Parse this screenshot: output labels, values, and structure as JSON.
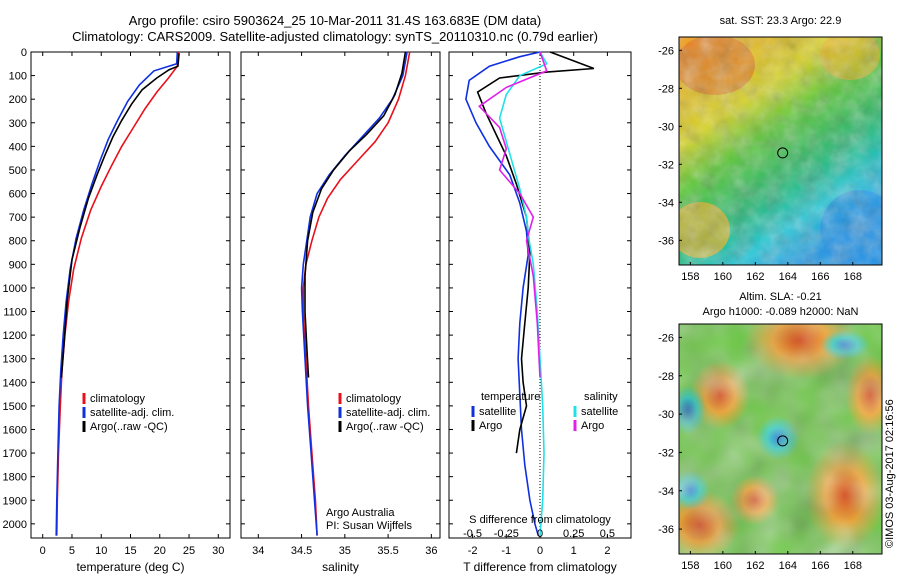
{
  "figure": {
    "title_line1": "Argo profile: csiro 5903624_25 10-Mar-2011 31.4S 163.683E (DM data)",
    "title_line2": "Climatology: CARS2009. Satellite-adjusted climatology: synTS_20110310.nc (0.79d earlier)",
    "credit": "©IMOS 03-Aug-2017 02:16:56",
    "colors": {
      "climatology": "#e8101a",
      "satellite": "#1030e0",
      "argo": "#000000",
      "sal_satellite": "#20e0e8",
      "sal_argo": "#e020e8"
    }
  },
  "chart_data": [
    {
      "type": "line",
      "id": "temperature",
      "xlabel": "temperature (deg C)",
      "ylabel": "",
      "xlim": [
        -2,
        32
      ],
      "ylim": [
        2060,
        0
      ],
      "xticks": [
        0,
        5,
        10,
        15,
        20,
        25,
        30
      ],
      "yticks": [
        0,
        100,
        200,
        300,
        400,
        500,
        600,
        700,
        800,
        900,
        1000,
        1100,
        1200,
        1300,
        1400,
        1500,
        1600,
        1700,
        1800,
        1900,
        2000
      ],
      "legend": [
        "climatology",
        "satellite-adj. clim.",
        "Argo(..raw -QC)"
      ],
      "series": [
        {
          "name": "climatology",
          "color": "#e8101a",
          "x": [
            23.2,
            23.0,
            21.5,
            19.5,
            17.5,
            15.5,
            13.5,
            11.8,
            10.0,
            8.2,
            6.6,
            5.3,
            4.4,
            3.8,
            3.3,
            3.0,
            2.7,
            2.5,
            2.4
          ],
          "y": [
            0,
            60,
            110,
            170,
            240,
            320,
            400,
            480,
            570,
            670,
            790,
            920,
            1060,
            1200,
            1350,
            1500,
            1700,
            1900,
            2050
          ]
        },
        {
          "name": "satellite-adj. clim.",
          "color": "#1030e0",
          "x": [
            23.0,
            22.9,
            19.0,
            16.5,
            14.5,
            12.8,
            11.2,
            9.8,
            8.4,
            7.0,
            5.7,
            4.7,
            4.0,
            3.5,
            3.1,
            2.8,
            2.6,
            2.4,
            2.3
          ],
          "y": [
            0,
            50,
            80,
            140,
            210,
            290,
            370,
            460,
            560,
            670,
            790,
            920,
            1060,
            1200,
            1350,
            1500,
            1700,
            1900,
            2050
          ]
        },
        {
          "name": "Argo(..raw -QC)",
          "color": "#000000",
          "x": [
            23.3,
            23.1,
            21.6,
            19.5,
            17.0,
            15.2,
            13.5,
            12.0,
            10.6,
            9.3,
            7.8,
            6.4,
            5.0,
            4.2,
            3.6,
            3.2
          ],
          "y": [
            5,
            60,
            75,
            110,
            160,
            220,
            290,
            360,
            440,
            520,
            620,
            740,
            880,
            1050,
            1250,
            1380
          ]
        }
      ]
    },
    {
      "type": "line",
      "id": "salinity",
      "xlabel": "salinity",
      "ylabel": "",
      "xlim": [
        33.8,
        36.1
      ],
      "ylim": [
        2060,
        0
      ],
      "xticks": [
        34,
        34.5,
        35,
        35.5,
        36
      ],
      "legend": [
        "climatology",
        "satellite-adj. clim.",
        "Argo(..raw -QC)"
      ],
      "annotation": [
        "Argo Australia",
        "PI: Susan Wijffels"
      ],
      "series": [
        {
          "name": "climatology",
          "color": "#e8101a",
          "x": [
            35.75,
            35.7,
            35.62,
            35.5,
            35.35,
            35.15,
            34.95,
            34.8,
            34.7,
            34.62,
            34.55,
            34.52,
            34.52,
            34.55,
            34.58,
            34.62,
            34.66,
            34.68
          ],
          "y": [
            0,
            100,
            200,
            300,
            380,
            460,
            540,
            620,
            700,
            800,
            900,
            1000,
            1100,
            1300,
            1500,
            1700,
            1900,
            2050
          ]
        },
        {
          "name": "satellite-adj. clim.",
          "color": "#1030e0",
          "x": [
            35.72,
            35.67,
            35.55,
            35.4,
            35.2,
            35.0,
            34.82,
            34.68,
            34.6,
            34.56,
            34.52,
            34.5,
            34.51,
            34.54,
            34.57,
            34.61,
            34.65,
            34.68
          ],
          "y": [
            0,
            100,
            200,
            280,
            360,
            440,
            520,
            600,
            700,
            800,
            900,
            1000,
            1100,
            1300,
            1500,
            1700,
            1900,
            2050
          ]
        },
        {
          "name": "Argo(..raw -QC)",
          "color": "#000000",
          "x": [
            35.7,
            35.66,
            35.58,
            35.45,
            35.25,
            35.05,
            34.87,
            34.73,
            34.63,
            34.57,
            34.54,
            34.54,
            34.56,
            34.58
          ],
          "y": [
            0,
            90,
            180,
            270,
            350,
            420,
            500,
            580,
            680,
            800,
            950,
            1100,
            1250,
            1380
          ]
        }
      ]
    },
    {
      "type": "line",
      "id": "difference",
      "xlabel": "T difference from climatology",
      "xlabel_top": "S difference from climatology",
      "ylabel": "",
      "xlim": [
        -2.7,
        2.7
      ],
      "ylim": [
        2060,
        0
      ],
      "xticks": [
        -2,
        -1,
        0,
        1,
        2
      ],
      "xticks_top": [
        "-0.5",
        "-0.25",
        "0",
        "0.25",
        "0.5"
      ],
      "legend_temperature": [
        "temperature",
        "satellite",
        "Argo"
      ],
      "legend_salinity": [
        "salinity",
        "satellite",
        "Argo"
      ],
      "series": [
        {
          "name": "satellite",
          "group": "temperature",
          "color": "#1030e0",
          "x": [
            0.0,
            -0.6,
            -1.5,
            -2.1,
            -2.2,
            -1.9,
            -1.5,
            -0.9,
            -0.6,
            -0.4,
            -0.35,
            -0.5,
            -0.6,
            -0.65,
            -0.6,
            -0.55,
            -0.45,
            -0.3,
            -0.15,
            -0.05
          ],
          "y": [
            0,
            20,
            60,
            120,
            200,
            300,
            400,
            520,
            640,
            760,
            860,
            1000,
            1150,
            1300,
            1450,
            1600,
            1750,
            1900,
            2000,
            2050
          ]
        },
        {
          "name": "Argo",
          "group": "temperature",
          "color": "#000000",
          "x": [
            0.3,
            1.6,
            0.2,
            -1.2,
            -1.85,
            -1.6,
            -1.3,
            -1.0,
            -0.7,
            -0.4,
            -0.3,
            -0.35,
            -0.45,
            -0.55,
            -0.5,
            -0.4,
            -0.6,
            -0.7
          ],
          "y": [
            0,
            70,
            85,
            110,
            170,
            260,
            350,
            440,
            560,
            700,
            850,
            1000,
            1150,
            1300,
            1400,
            1500,
            1600,
            1700
          ]
        },
        {
          "name": "satellite",
          "group": "salinity",
          "color": "#20e0e8",
          "x": [
            0.0,
            0.05,
            -0.15,
            -0.25,
            -0.3,
            -0.25,
            -0.2,
            -0.15,
            -0.1,
            -0.08,
            -0.05,
            -0.02,
            0.0,
            0.02,
            0.03,
            0.02,
            0.0
          ],
          "y": [
            0,
            50,
            100,
            180,
            280,
            380,
            480,
            580,
            700,
            800,
            900,
            1100,
            1300,
            1500,
            1700,
            1900,
            2050
          ]
        },
        {
          "name": "Argo",
          "group": "salinity",
          "color": "#e020e8",
          "x": [
            0.0,
            0.05,
            -0.25,
            -0.45,
            -0.3,
            -0.25,
            -0.3,
            -0.15,
            -0.05,
            -0.1,
            -0.05,
            -0.02,
            0.0
          ],
          "y": [
            0,
            80,
            150,
            230,
            320,
            410,
            500,
            600,
            700,
            800,
            950,
            1150,
            1380
          ]
        }
      ]
    },
    {
      "type": "heatmap",
      "id": "sst_map",
      "title": "sat. SST: 23.3 Argo: 22.9",
      "xticks": [
        158,
        160,
        162,
        164,
        166,
        168
      ],
      "yticks": [
        -26,
        -28,
        -30,
        -32,
        -34,
        -36
      ],
      "marker": [
        163.683,
        -31.4
      ]
    },
    {
      "type": "heatmap",
      "id": "sla_map",
      "title_line1": "Altim. SLA: -0.21",
      "title_line2": "Argo h1000: -0.089 h2000: NaN",
      "xticks": [
        158,
        160,
        162,
        164,
        166,
        168
      ],
      "yticks": [
        -26,
        -28,
        -30,
        -32,
        -34,
        -36
      ],
      "marker": [
        163.683,
        -31.4
      ]
    }
  ]
}
